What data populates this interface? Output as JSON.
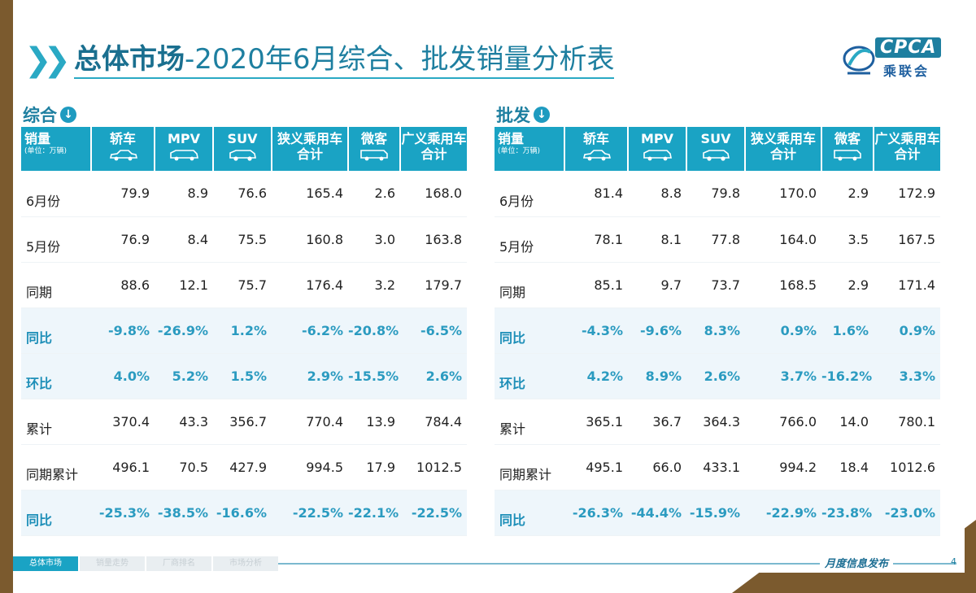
{
  "title": {
    "part1": "总体市场",
    "part2": "-2020年6月综合、批发销量分析表"
  },
  "logo": {
    "brand": "CPCA",
    "sub": "乘联会"
  },
  "header_row": {
    "metric": "销量",
    "unit": "(单位：万辆)",
    "cols": [
      {
        "line1": "轿车",
        "line2": "",
        "car": "sedan-icon"
      },
      {
        "line1": "MPV",
        "line2": "",
        "car": "mpv-icon"
      },
      {
        "line1": "SUV",
        "line2": "",
        "car": "suv-icon"
      },
      {
        "line1": "狭义乘用车",
        "line2": "合计",
        "car": ""
      },
      {
        "line1": "微客",
        "line2": "",
        "car": "minivan-icon"
      },
      {
        "line1": "广义乘用车",
        "line2": "合计",
        "car": ""
      }
    ]
  },
  "tables": [
    {
      "section": "综合",
      "rows": [
        {
          "label": "6月份",
          "values": [
            "79.9",
            "8.9",
            "76.6",
            "165.4",
            "2.6",
            "168.0"
          ],
          "highlight": false
        },
        {
          "label": "5月份",
          "values": [
            "76.9",
            "8.4",
            "75.5",
            "160.8",
            "3.0",
            "163.8"
          ],
          "highlight": false
        },
        {
          "label": "同期",
          "values": [
            "88.6",
            "12.1",
            "75.7",
            "176.4",
            "3.2",
            "179.7"
          ],
          "highlight": false
        },
        {
          "label": "同比",
          "values": [
            "-9.8%",
            "-26.9%",
            "1.2%",
            "-6.2%",
            "-20.8%",
            "-6.5%"
          ],
          "highlight": true
        },
        {
          "label": "环比",
          "values": [
            "4.0%",
            "5.2%",
            "1.5%",
            "2.9%",
            "-15.5%",
            "2.6%"
          ],
          "highlight": true
        },
        {
          "label": "累计",
          "values": [
            "370.4",
            "43.3",
            "356.7",
            "770.4",
            "13.9",
            "784.4"
          ],
          "highlight": false
        },
        {
          "label": "同期累计",
          "values": [
            "496.1",
            "70.5",
            "427.9",
            "994.5",
            "17.9",
            "1012.5"
          ],
          "highlight": false
        },
        {
          "label": "同比",
          "values": [
            "-25.3%",
            "-38.5%",
            "-16.6%",
            "-22.5%",
            "-22.1%",
            "-22.5%"
          ],
          "highlight": true
        }
      ]
    },
    {
      "section": "批发",
      "rows": [
        {
          "label": "6月份",
          "values": [
            "81.4",
            "8.8",
            "79.8",
            "170.0",
            "2.9",
            "172.9"
          ],
          "highlight": false
        },
        {
          "label": "5月份",
          "values": [
            "78.1",
            "8.1",
            "77.8",
            "164.0",
            "3.5",
            "167.5"
          ],
          "highlight": false
        },
        {
          "label": "同期",
          "values": [
            "85.1",
            "9.7",
            "73.7",
            "168.5",
            "2.9",
            "171.4"
          ],
          "highlight": false
        },
        {
          "label": "同比",
          "values": [
            "-4.3%",
            "-9.6%",
            "8.3%",
            "0.9%",
            "1.6%",
            "0.9%"
          ],
          "highlight": true
        },
        {
          "label": "环比",
          "values": [
            "4.2%",
            "8.9%",
            "2.6%",
            "3.7%",
            "-16.2%",
            "3.3%"
          ],
          "highlight": true
        },
        {
          "label": "累计",
          "values": [
            "365.1",
            "36.7",
            "364.3",
            "766.0",
            "14.0",
            "780.1"
          ],
          "highlight": false
        },
        {
          "label": "同期累计",
          "values": [
            "495.1",
            "66.0",
            "433.1",
            "994.2",
            "18.4",
            "1012.6"
          ],
          "highlight": false
        },
        {
          "label": "同比",
          "values": [
            "-26.3%",
            "-44.4%",
            "-15.9%",
            "-22.9%",
            "-23.8%",
            "-23.0%"
          ],
          "highlight": true
        }
      ]
    }
  ],
  "footer": {
    "tabs": [
      "总体市场",
      "销量走势",
      "厂商排名",
      "市场分析"
    ],
    "monthly": "月度信息发布",
    "page": "4"
  },
  "colors": {
    "accent": "#1aa3c4",
    "title": "#1e7fa0",
    "frame": "#7b5a2e"
  }
}
